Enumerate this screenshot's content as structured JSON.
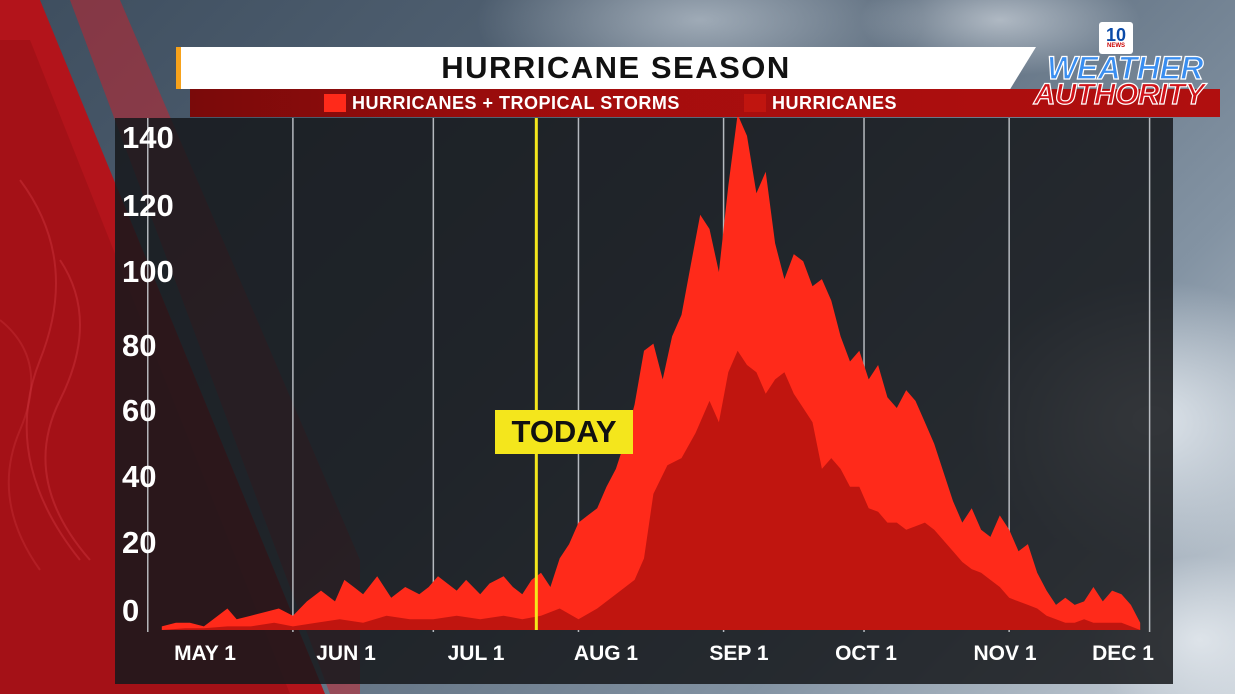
{
  "title": "HURRICANE SEASON",
  "legend": [
    {
      "label": "HURRICANES + TROPICAL STORMS",
      "color": "#ff2a1a"
    },
    {
      "label": "HURRICANES",
      "color": "#c0150f"
    }
  ],
  "logo": {
    "channel_number": "10",
    "network": "NEWS",
    "line1": "WEATHER",
    "line2": "AUTHORITY"
  },
  "today_label": "TODAY",
  "colors": {
    "accent": "#f7a21b",
    "today": "#f4e61c",
    "panel": "#16181c"
  },
  "chart_data": {
    "type": "area",
    "title": "HURRICANE SEASON",
    "xlabel": "",
    "ylabel": "",
    "ylim": [
      0,
      143
    ],
    "yticks": [
      0,
      20,
      40,
      60,
      80,
      100,
      120,
      140
    ],
    "xlim": [
      -7,
      219
    ],
    "xtick_labels": [
      "MAY 1",
      "JUN 1",
      "JUL 1",
      "AUG 1",
      "SEP 1",
      "OCT 1",
      "NOV 1",
      "DEC 1"
    ],
    "xtick_days": [
      0,
      31,
      61,
      92,
      123,
      153,
      184,
      214
    ],
    "today_day": 83,
    "grid": "vertical",
    "legend_position": "top",
    "series": [
      {
        "name": "HURRICANES + TROPICAL STORMS",
        "color": "#ff2a1a",
        "x": [
          3,
          6,
          9,
          12,
          14,
          17,
          19,
          22,
          25,
          28,
          31,
          34,
          37,
          40,
          42,
          44,
          46,
          49,
          52,
          55,
          58,
          60,
          62,
          64,
          66,
          68,
          71,
          73,
          76,
          78,
          80,
          82,
          84,
          86,
          88,
          90,
          92,
          94,
          96,
          98,
          100,
          102,
          104,
          106,
          108,
          110,
          112,
          114,
          116,
          118,
          120,
          122,
          124,
          126,
          128,
          130,
          132,
          134,
          136,
          138,
          140,
          142,
          144,
          146,
          148,
          150,
          152,
          154,
          156,
          158,
          160,
          162,
          164,
          166,
          168,
          170,
          172,
          174,
          176,
          178,
          180,
          182,
          184,
          186,
          188,
          190,
          192,
          194,
          196,
          198,
          200,
          202,
          204,
          206,
          208,
          210,
          212
        ],
        "y": [
          1,
          2,
          2,
          1,
          3,
          6,
          3,
          4,
          5,
          6,
          4,
          8,
          11,
          8,
          14,
          12,
          10,
          15,
          9,
          12,
          10,
          12,
          15,
          13,
          11,
          14,
          10,
          13,
          15,
          12,
          10,
          14,
          16,
          12,
          20,
          24,
          30,
          32,
          34,
          40,
          45,
          53,
          63,
          78,
          80,
          70,
          82,
          88,
          102,
          116,
          112,
          100,
          124,
          144,
          138,
          122,
          128,
          108,
          98,
          105,
          103,
          96,
          98,
          92,
          82,
          75,
          78,
          70,
          74,
          65,
          62,
          67,
          64,
          58,
          52,
          44,
          36,
          30,
          34,
          28,
          26,
          32,
          28,
          22,
          24,
          16,
          11,
          7,
          9,
          7,
          8,
          12,
          8,
          11,
          10,
          7,
          2
        ]
      },
      {
        "name": "HURRICANES",
        "color": "#c0150f",
        "x": [
          3,
          8,
          12,
          17,
          22,
          27,
          31,
          36,
          41,
          46,
          51,
          56,
          61,
          66,
          71,
          76,
          80,
          84,
          88,
          92,
          96,
          100,
          104,
          106,
          108,
          111,
          114,
          117,
          120,
          122,
          124,
          126,
          128,
          130,
          132,
          134,
          136,
          138,
          140,
          142,
          144,
          146,
          148,
          150,
          152,
          154,
          156,
          158,
          160,
          162,
          164,
          166,
          168,
          170,
          172,
          174,
          176,
          178,
          180,
          182,
          184,
          186,
          188,
          190,
          192,
          194,
          196,
          198,
          200,
          202,
          204,
          206,
          208,
          210,
          212
        ],
        "y": [
          0,
          0.5,
          0.5,
          1,
          1,
          2,
          1,
          2,
          3,
          2,
          4,
          3,
          3,
          4,
          3,
          4,
          3,
          4,
          6,
          3,
          6,
          10,
          14,
          20,
          38,
          46,
          48,
          55,
          64,
          58,
          72,
          78,
          74,
          72,
          66,
          70,
          72,
          66,
          62,
          58,
          45,
          48,
          45,
          40,
          40,
          34,
          33,
          30,
          30,
          28,
          29,
          30,
          28,
          25,
          22,
          19,
          17,
          16,
          14,
          12,
          9,
          8,
          7,
          6,
          4,
          3,
          2,
          2,
          3,
          2,
          2,
          2,
          2,
          1,
          0
        ]
      }
    ]
  }
}
